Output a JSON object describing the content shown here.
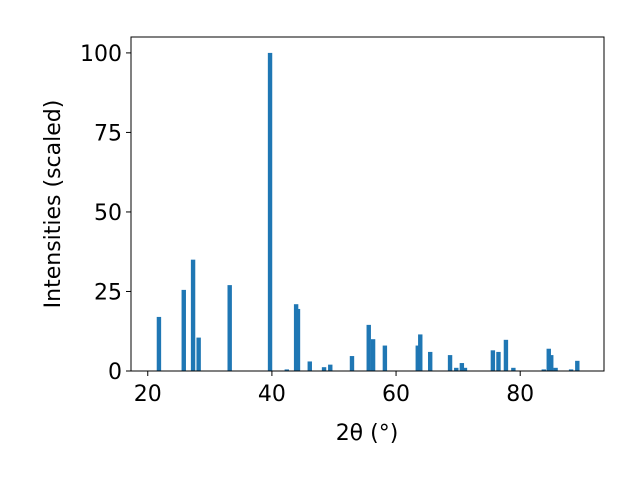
{
  "chart_data": {
    "type": "bar",
    "x_label": "2θ (°)",
    "y_label": "Intensities (scaled)",
    "x": [
      21.8,
      25.8,
      27.3,
      28.2,
      33.2,
      39.7,
      42.4,
      43.9,
      44.2,
      46.1,
      48.4,
      49.4,
      52.9,
      55.6,
      56.3,
      58.2,
      63.5,
      63.9,
      65.5,
      68.7,
      69.7,
      70.6,
      71.1,
      75.6,
      76.5,
      77.7,
      78.9,
      83.8,
      84.6,
      85.0,
      85.7,
      88.2,
      89.2
    ],
    "values": [
      17,
      25.5,
      35,
      10.5,
      27,
      100,
      0.5,
      21,
      19.5,
      3,
      1.2,
      2,
      4.7,
      14.5,
      10,
      8,
      8,
      11.5,
      6,
      5,
      1,
      2.5,
      1,
      6.5,
      6,
      9.8,
      1,
      0.5,
      7,
      5,
      1,
      0.5,
      3.2
    ],
    "color": "#1f77b4",
    "xlim": [
      17.3,
      93.5
    ],
    "xticks": [
      20,
      40,
      60,
      80
    ],
    "ylim": [
      0,
      105
    ],
    "yticks": [
      0,
      25,
      50,
      75,
      100
    ]
  }
}
